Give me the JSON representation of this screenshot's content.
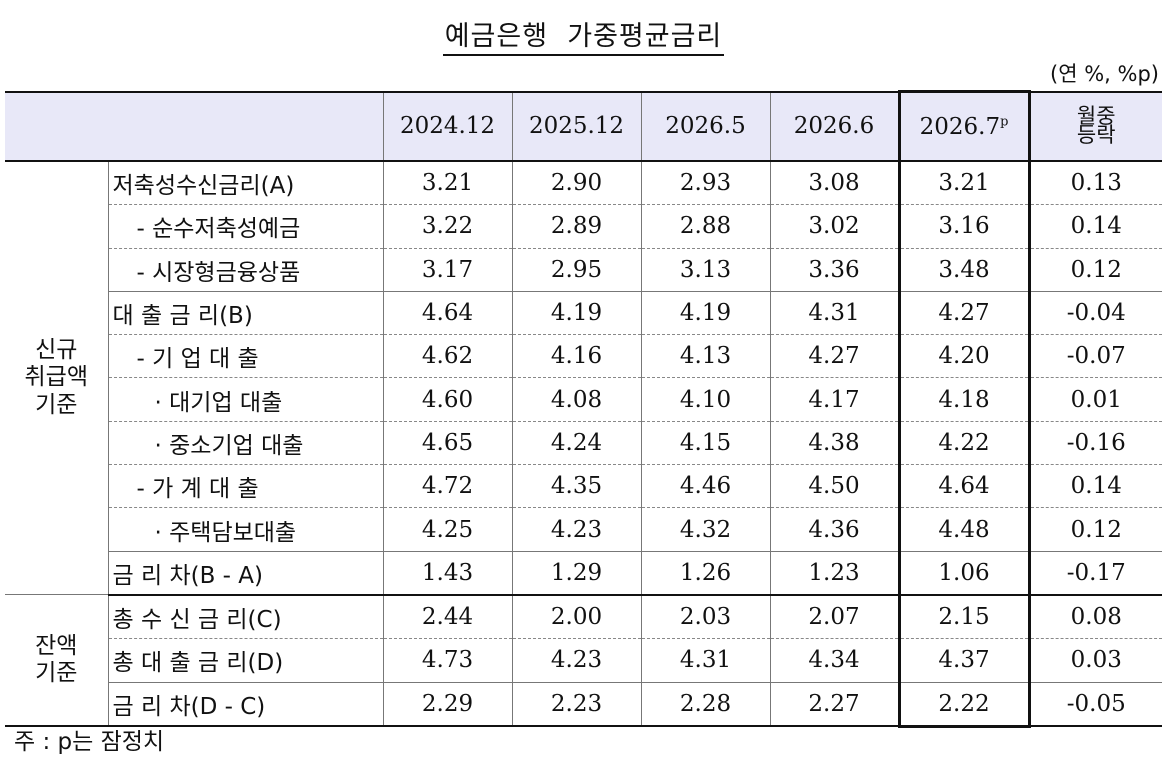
{
  "title": "예금은행  가중평균금리",
  "unit": "(연 %, %p)",
  "columns": [
    "2024.12",
    "2025.12",
    "2026.5",
    "2026.6",
    "2026.7",
    "월중 등락"
  ],
  "prelim_mark": "p",
  "change_line1": "월중",
  "change_line2": "등락",
  "groups": {
    "new": {
      "line1": "신규",
      "line2": "취급액",
      "line3": "기준"
    },
    "balance": {
      "line1": "잔액",
      "line2": "기준"
    }
  },
  "rows": [
    {
      "label": "저축성수신금리(A)",
      "values": [
        "3.21",
        "2.90",
        "2.93",
        "3.08",
        "3.21",
        "0.13"
      ]
    },
    {
      "label": "- 순수저축성예금",
      "values": [
        "3.22",
        "2.89",
        "2.88",
        "3.02",
        "3.16",
        "0.14"
      ]
    },
    {
      "label": "- 시장형금융상품",
      "values": [
        "3.17",
        "2.95",
        "3.13",
        "3.36",
        "3.48",
        "0.12"
      ]
    },
    {
      "label": "대 출 금 리(B)",
      "values": [
        "4.64",
        "4.19",
        "4.19",
        "4.31",
        "4.27",
        "-0.04"
      ]
    },
    {
      "label": "- 기 업 대 출",
      "values": [
        "4.62",
        "4.16",
        "4.13",
        "4.27",
        "4.20",
        "-0.07"
      ]
    },
    {
      "label": "· 대기업 대출",
      "values": [
        "4.60",
        "4.08",
        "4.10",
        "4.17",
        "4.18",
        "0.01"
      ]
    },
    {
      "label": "· 중소기업 대출",
      "values": [
        "4.65",
        "4.24",
        "4.15",
        "4.38",
        "4.22",
        "-0.16"
      ]
    },
    {
      "label": "- 가 계 대 출",
      "values": [
        "4.72",
        "4.35",
        "4.46",
        "4.50",
        "4.64",
        "0.14"
      ]
    },
    {
      "label": "· 주택담보대출",
      "values": [
        "4.25",
        "4.23",
        "4.32",
        "4.36",
        "4.48",
        "0.12"
      ]
    },
    {
      "label": "금 리 차(B - A)",
      "values": [
        "1.43",
        "1.29",
        "1.26",
        "1.23",
        "1.06",
        "-0.17"
      ]
    },
    {
      "label": "총 수 신 금 리(C)",
      "values": [
        "2.44",
        "2.00",
        "2.03",
        "2.07",
        "2.15",
        "0.08"
      ]
    },
    {
      "label": "총 대 출 금 리(D)",
      "values": [
        "4.73",
        "4.23",
        "4.31",
        "4.34",
        "4.37",
        "0.03"
      ]
    },
    {
      "label": "금 리 차(D - C)",
      "values": [
        "2.29",
        "2.23",
        "2.28",
        "2.27",
        "2.22",
        "-0.05"
      ]
    }
  ],
  "note": "주 : p는 잠정치"
}
